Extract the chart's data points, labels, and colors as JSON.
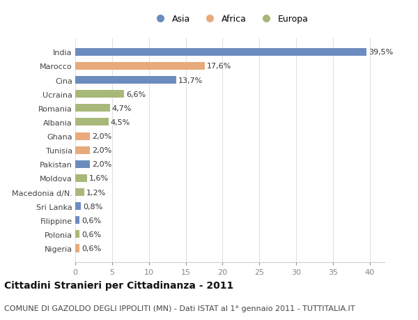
{
  "categories": [
    "India",
    "Marocco",
    "Cina",
    "Ucraina",
    "Romania",
    "Albania",
    "Ghana",
    "Tunisia",
    "Pakistan",
    "Moldova",
    "Macedonia d/N.",
    "Sri Lanka",
    "Filippine",
    "Polonia",
    "Nigeria"
  ],
  "values": [
    39.5,
    17.6,
    13.7,
    6.6,
    4.7,
    4.5,
    2.0,
    2.0,
    2.0,
    1.6,
    1.2,
    0.8,
    0.6,
    0.6,
    0.6
  ],
  "labels": [
    "39,5%",
    "17,6%",
    "13,7%",
    "6,6%",
    "4,7%",
    "4,5%",
    "2,0%",
    "2,0%",
    "2,0%",
    "1,6%",
    "1,2%",
    "0,8%",
    "0,6%",
    "0,6%",
    "0,6%"
  ],
  "continents": [
    "Asia",
    "Africa",
    "Asia",
    "Europa",
    "Europa",
    "Europa",
    "Africa",
    "Africa",
    "Asia",
    "Europa",
    "Europa",
    "Asia",
    "Asia",
    "Europa",
    "Africa"
  ],
  "colors": {
    "Asia": "#6b8cbf",
    "Africa": "#e8aa7a",
    "Europa": "#a8b878"
  },
  "title": "Cittadini Stranieri per Cittadinanza - 2011",
  "subtitle": "COMUNE DI GAZOLDO DEGLI IPPOLITI (MN) - Dati ISTAT al 1° gennaio 2011 - TUTTITALIA.IT",
  "xlim": [
    0,
    42
  ],
  "xticks": [
    0,
    5,
    10,
    15,
    20,
    25,
    30,
    35,
    40
  ],
  "background_color": "#ffffff",
  "grid_color": "#e0e0e0",
  "bar_height": 0.55,
  "title_fontsize": 10,
  "subtitle_fontsize": 8,
  "tick_fontsize": 8,
  "value_fontsize": 8
}
